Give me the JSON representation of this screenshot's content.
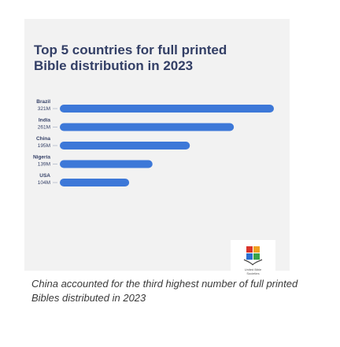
{
  "title_line1": "Top 5 countries for full printed",
  "title_line2": "Bible distribution in 2023",
  "caption": "China accounted for the third highest number of full printed Bibles distributed in 2023",
  "logo": {
    "text_line1": "United Bible",
    "text_line2": "Societies",
    "icon": "open-bible-logo-icon"
  },
  "colors": {
    "bar": "#3d78d8",
    "title": "#333f66",
    "card": "#f2f2f2"
  },
  "chart_data": {
    "type": "bar",
    "orientation": "horizontal",
    "categories": [
      "Brazil",
      "India",
      "China",
      "Nigeria",
      "USA"
    ],
    "values": [
      321,
      261,
      195,
      139,
      104
    ],
    "value_labels": [
      "321M",
      "261M",
      "195M",
      "139M",
      "104M"
    ],
    "unit": "M",
    "xlim": [
      0,
      321
    ],
    "grid": false
  }
}
